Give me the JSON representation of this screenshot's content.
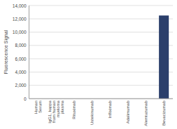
{
  "chart_data": {
    "type": "bar",
    "categories": [
      "Human\nSerum",
      "IgG1, kappa\nfrom human\nmyeloma\nplasma",
      "Rituximab",
      "Ustekinumab",
      "Infliximab",
      "Adalimumab",
      "Alemtuzumab",
      "Bevacizumab"
    ],
    "values": [
      0,
      0,
      0,
      0,
      0,
      0,
      0,
      12500
    ],
    "color": "#2b3f6b",
    "ylabel": "Fluorescence Signal",
    "ylim": [
      0,
      14000
    ],
    "yticks": [
      0,
      {
        "value": 2000,
        "label": "2,000"
      },
      {
        "value": 4000,
        "label": "4,000"
      },
      {
        "value": 6000,
        "label": "6,000"
      },
      {
        "value": 8000,
        "label": "8,000"
      },
      {
        "value": 10000,
        "label": "10,000"
      },
      {
        "value": 12000,
        "label": "12,000"
      },
      {
        "value": 14000,
        "label": "14,000"
      }
    ],
    "grid": true
  }
}
